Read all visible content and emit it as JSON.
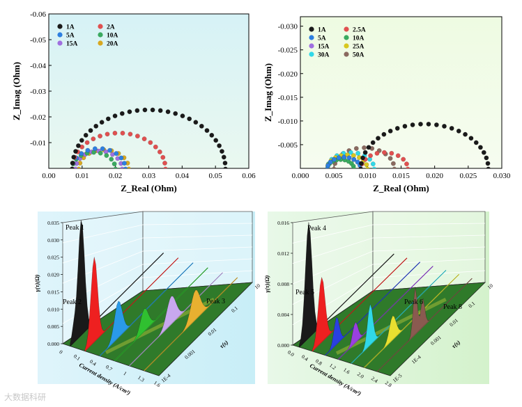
{
  "chart_data": [
    {
      "type": "scatter",
      "title": "",
      "xlabel": "Z_Real (Ohm)",
      "ylabel": "Z_Imag (Ohm)",
      "xlim": [
        0.0,
        0.06
      ],
      "ylim": [
        0.0,
        -0.06
      ],
      "xticks": [
        "0.00",
        "0.01",
        "0.02",
        "0.03",
        "0.04",
        "0.05",
        "0.06"
      ],
      "yticks": [
        "-0.06",
        "-0.05",
        "-0.04",
        "-0.03",
        "-0.02",
        "-0.01"
      ],
      "series": [
        {
          "name": "1A",
          "color": "#1a1a1a",
          "x0": 0.007,
          "x1": 0.053
        },
        {
          "name": "2A",
          "color": "#e05050",
          "x0": 0.007,
          "x1": 0.035
        },
        {
          "name": "5A",
          "color": "#2e7fe0",
          "x0": 0.007,
          "x1": 0.023
        },
        {
          "name": "10A",
          "color": "#3aaa60",
          "x0": 0.007,
          "x1": 0.02
        },
        {
          "name": "15A",
          "color": "#a070e0",
          "x0": 0.008,
          "x1": 0.022
        },
        {
          "name": "20A",
          "color": "#d8a820",
          "x0": 0.009,
          "x1": 0.024
        }
      ]
    },
    {
      "type": "scatter",
      "title": "",
      "xlabel": "Z_Real (Ohm)",
      "ylabel": "Z_Imag (Ohm)",
      "xlim": [
        0.0,
        0.03
      ],
      "ylim": [
        0.0,
        -0.032
      ],
      "xticks": [
        "0.000",
        "0.005",
        "0.010",
        "0.015",
        "0.020",
        "0.025",
        "0.030"
      ],
      "yticks": [
        "-0.030",
        "-0.025",
        "-0.020",
        "-0.015",
        "-0.010",
        "-0.005"
      ],
      "series": [
        {
          "name": "1A",
          "color": "#1a1a1a",
          "x0": 0.009,
          "x1": 0.028
        },
        {
          "name": "2.5A",
          "color": "#e05050",
          "x0": 0.009,
          "x1": 0.016
        },
        {
          "name": "5A",
          "color": "#2e7fe0",
          "x0": 0.004,
          "x1": 0.009
        },
        {
          "name": "10A",
          "color": "#3aaa60",
          "x0": 0.004,
          "x1": 0.008
        },
        {
          "name": "15A",
          "color": "#a070e0",
          "x0": 0.004,
          "x1": 0.009
        },
        {
          "name": "25A",
          "color": "#d8c820",
          "x0": 0.004,
          "x1": 0.01
        },
        {
          "name": "30A",
          "color": "#30d8e8",
          "x0": 0.004,
          "x1": 0.011
        },
        {
          "name": "50A",
          "color": "#8a6a60",
          "x0": 0.005,
          "x1": 0.014
        }
      ]
    },
    {
      "type": "area",
      "title": "",
      "xlabel": "Current density (A/cm²)",
      "ylabel": "γ(τ)(Ω)",
      "zlabel": "τ(s)",
      "ylim": [
        0.0,
        0.035
      ],
      "yticks": [
        "0.000",
        "0.005",
        "0.010",
        "0.015",
        "0.020",
        "0.025",
        "0.030",
        "0.035"
      ],
      "xticks": [
        "0",
        "0.1",
        "0.4",
        "0.7",
        "1",
        "1.3",
        "1.6"
      ],
      "zticks": [
        "10",
        "0.1",
        "0.01",
        "0.001",
        "1E-4"
      ],
      "annotations": [
        "Peak 1",
        "Peak 2",
        "Peak 3"
      ],
      "series": [
        {
          "name": "1",
          "color": "#1a1a1a",
          "peak": 0.0335
        },
        {
          "name": "2",
          "color": "#ee2020",
          "peak": 0.0245
        },
        {
          "name": "3",
          "color": "#2a9ae8",
          "peak": 0.0105
        },
        {
          "name": "4",
          "color": "#30c030",
          "peak": 0.0065
        },
        {
          "name": "5",
          "color": "#c8a8ee",
          "peak": 0.008
        },
        {
          "name": "6",
          "color": "#e8b030",
          "peak": 0.0085
        }
      ]
    },
    {
      "type": "area",
      "title": "",
      "xlabel": "Current density (A/cm²)",
      "ylabel": "γ(τ)(Ω)",
      "zlabel": "τ(s)",
      "ylim": [
        0.0,
        0.018
      ],
      "yticks": [
        "0.000",
        "0.004",
        "0.008",
        "0.012",
        "0.016"
      ],
      "xticks": [
        "0.0",
        "0.4",
        "0.8",
        "1.2",
        "1.6",
        "2.0",
        "2.4",
        "2.8"
      ],
      "zticks": [
        "10",
        "0.1",
        "0.01",
        "0.001",
        "1E-4",
        "1E-5"
      ],
      "annotations": [
        "Peak 4",
        "Peak 5",
        "Peak 6",
        "Peak 8"
      ],
      "series": [
        {
          "name": "1",
          "color": "#1a1a1a",
          "peak": 0.017
        },
        {
          "name": "2",
          "color": "#ee2020",
          "peak": 0.0095
        },
        {
          "name": "3",
          "color": "#2a40e0",
          "peak": 0.004
        },
        {
          "name": "4",
          "color": "#9a40e0",
          "peak": 0.003
        },
        {
          "name": "5",
          "color": "#30d8e8",
          "peak": 0.006
        },
        {
          "name": "6",
          "color": "#e8e030",
          "peak": 0.0035
        },
        {
          "name": "7",
          "color": "#8a5a50",
          "peak": 0.007
        }
      ]
    }
  ],
  "watermark": "大数据科研"
}
